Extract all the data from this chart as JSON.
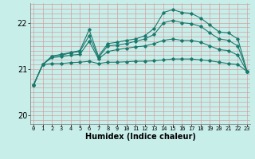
{
  "title": "",
  "xlabel": "Humidex (Indice chaleur)",
  "background_color": "#c8eeea",
  "grid_color_v": "#d4a0a0",
  "grid_color_h": "#d4a0a0",
  "line_color": "#1a7a6e",
  "xlim": [
    -0.3,
    23.3
  ],
  "ylim": [
    19.82,
    22.42
  ],
  "yticks": [
    20,
    21,
    22
  ],
  "xticks": [
    0,
    1,
    2,
    3,
    4,
    5,
    6,
    7,
    8,
    9,
    10,
    11,
    12,
    13,
    14,
    15,
    16,
    17,
    18,
    19,
    20,
    21,
    22,
    23
  ],
  "lines": [
    [
      20.65,
      21.1,
      21.12,
      21.12,
      21.14,
      21.15,
      21.17,
      21.12,
      21.15,
      21.15,
      21.16,
      21.17,
      21.17,
      21.18,
      21.2,
      21.22,
      21.22,
      21.22,
      21.2,
      21.18,
      21.15,
      21.12,
      21.1,
      20.95
    ],
    [
      20.65,
      21.1,
      21.25,
      21.27,
      21.3,
      21.32,
      21.6,
      21.22,
      21.38,
      21.42,
      21.45,
      21.48,
      21.5,
      21.55,
      21.62,
      21.65,
      21.62,
      21.62,
      21.58,
      21.5,
      21.42,
      21.4,
      21.3,
      20.95
    ],
    [
      20.65,
      21.1,
      21.28,
      21.3,
      21.35,
      21.38,
      21.72,
      21.25,
      21.5,
      21.52,
      21.55,
      21.6,
      21.65,
      21.75,
      22.0,
      22.05,
      22.0,
      21.98,
      21.92,
      21.78,
      21.65,
      21.62,
      21.5,
      20.95
    ],
    [
      20.65,
      21.1,
      21.28,
      21.32,
      21.36,
      21.4,
      21.85,
      21.28,
      21.55,
      21.58,
      21.62,
      21.65,
      21.72,
      21.88,
      22.22,
      22.28,
      22.22,
      22.2,
      22.1,
      21.95,
      21.8,
      21.78,
      21.65,
      20.95
    ]
  ]
}
